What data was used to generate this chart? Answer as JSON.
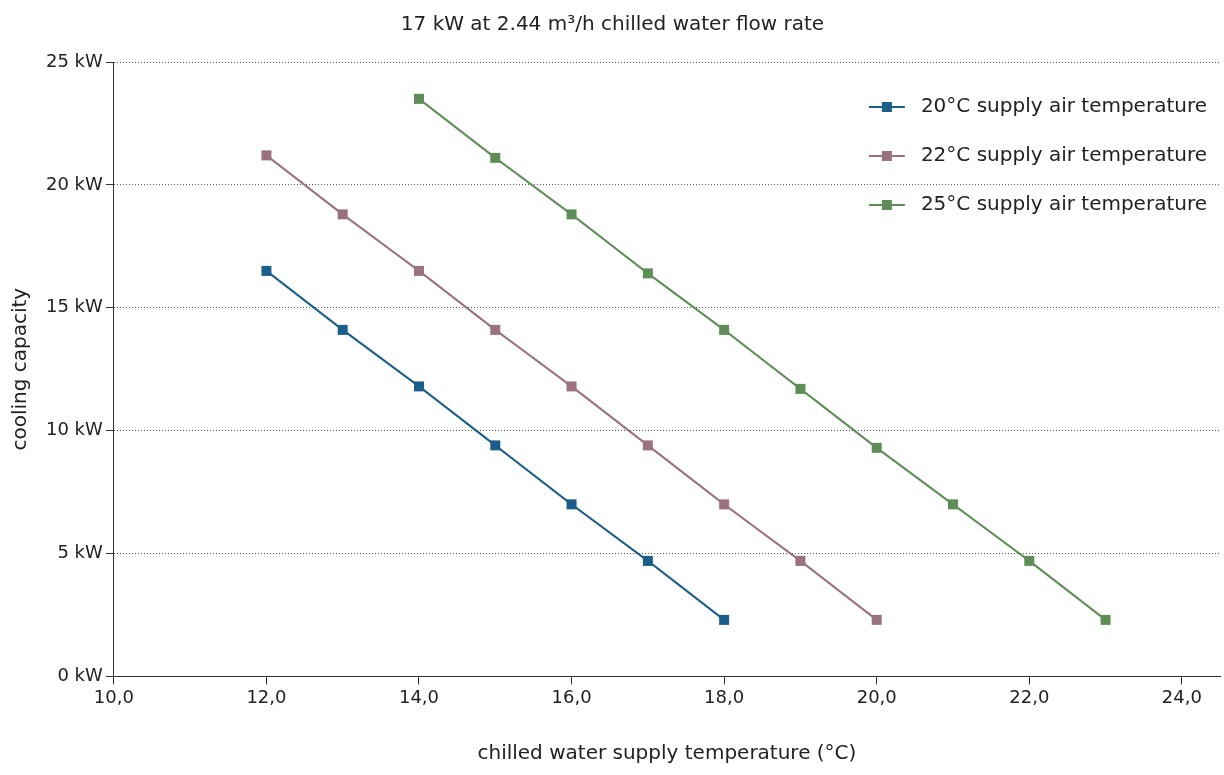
{
  "chart_data": {
    "type": "line",
    "title": "17 kW at 2.44 m³/h chilled water flow rate",
    "xlabel": "chilled water supply temperature (°C)",
    "ylabel": "cooling capacity",
    "x": [
      12,
      13,
      14,
      15,
      16,
      17,
      18,
      19,
      20,
      21,
      22,
      23
    ],
    "series": [
      {
        "name": "20°C supply air temperature",
        "color": "#1a5e8a",
        "values": [
          16.5,
          14.1,
          11.8,
          9.4,
          7.0,
          4.7,
          2.3,
          null,
          null,
          null,
          null,
          null
        ]
      },
      {
        "name": "22°C supply air temperature",
        "color": "#99717f",
        "values": [
          21.2,
          18.8,
          16.5,
          14.1,
          11.8,
          9.4,
          7.0,
          4.7,
          2.3,
          null,
          null,
          null
        ]
      },
      {
        "name": "25°C supply air temperature",
        "color": "#5e8d57",
        "values": [
          null,
          null,
          23.5,
          21.1,
          18.8,
          16.4,
          14.1,
          11.7,
          9.3,
          7.0,
          4.7,
          2.3
        ]
      }
    ],
    "xlim": [
      10,
      24.5
    ],
    "xticks": [
      {
        "value": 10,
        "label": "10,0"
      },
      {
        "value": 12,
        "label": "12,0"
      },
      {
        "value": 14,
        "label": "14,0"
      },
      {
        "value": 16,
        "label": "16,0"
      },
      {
        "value": 18,
        "label": "18,0"
      },
      {
        "value": 20,
        "label": "20,0"
      },
      {
        "value": 22,
        "label": "22,0"
      },
      {
        "value": 24,
        "label": "24,0"
      }
    ],
    "ylim": [
      0,
      25
    ],
    "yticks": [
      {
        "value": 0,
        "label": "0 kW"
      },
      {
        "value": 5,
        "label": "5 kW"
      },
      {
        "value": 10,
        "label": "10 kW"
      },
      {
        "value": 15,
        "label": "15 kW"
      },
      {
        "value": 20,
        "label": "20 kW"
      },
      {
        "value": 25,
        "label": "25 kW"
      }
    ],
    "grid": "y",
    "legend": "top right",
    "marker": "square",
    "line_style": "solid"
  }
}
